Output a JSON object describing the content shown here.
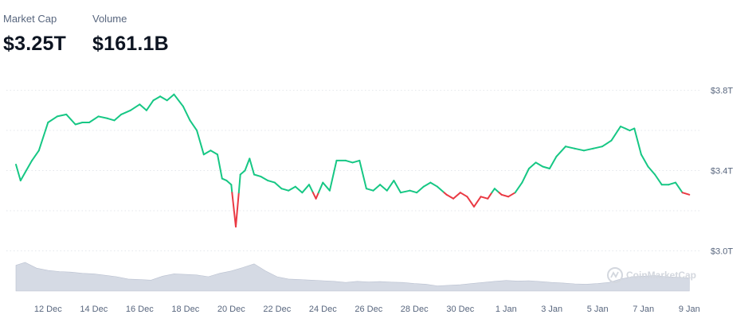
{
  "header": {
    "market_cap_label": "Market Cap",
    "market_cap_value": "$3.25T",
    "volume_label": "Volume",
    "volume_value": "$161.1B"
  },
  "watermark": "CoinMarketCap",
  "colors": {
    "up": "#16c784",
    "down": "#ea3943",
    "volume": "#c7cddb",
    "grid": "#e3e6eb",
    "text": "#58667e"
  },
  "chart_data": {
    "type": "line",
    "title": "",
    "xlabel": "",
    "ylabel": "",
    "baseline": 3.29,
    "ylim": [
      2.95,
      3.85
    ],
    "y_ticks": [
      {
        "v": 3.0,
        "label": "$3.0T"
      },
      {
        "v": 3.4,
        "label": "$3.4T"
      },
      {
        "v": 3.8,
        "label": "$3.8T"
      }
    ],
    "x_ticks": [
      "12 Dec",
      "14 Dec",
      "16 Dec",
      "18 Dec",
      "20 Dec",
      "22 Dec",
      "24 Dec",
      "26 Dec",
      "28 Dec",
      "30 Dec",
      "1 Jan",
      "3 Jan",
      "5 Jan",
      "7 Jan",
      "9 Jan"
    ],
    "x_range": [
      10.6,
      40.2
    ],
    "grid": true,
    "series": [
      {
        "unit": "trillion USD",
        "x": [
          10.6,
          10.8,
          11.0,
          11.3,
          11.6,
          12.0,
          12.4,
          12.8,
          13.2,
          13.5,
          13.8,
          14.2,
          14.6,
          14.9,
          15.2,
          15.6,
          16.0,
          16.3,
          16.6,
          16.9,
          17.2,
          17.5,
          17.9,
          18.2,
          18.5,
          18.8,
          19.1,
          19.4,
          19.6,
          19.8,
          20.0,
          20.2,
          20.4,
          20.6,
          20.8,
          21.0,
          21.3,
          21.6,
          21.9,
          22.2,
          22.5,
          22.8,
          23.1,
          23.4,
          23.7,
          24.0,
          24.3,
          24.6,
          25.0,
          25.3,
          25.6,
          25.9,
          26.2,
          26.5,
          26.8,
          27.1,
          27.4,
          27.8,
          28.1,
          28.4,
          28.7,
          29.0,
          29.4,
          29.7,
          30.0,
          30.3,
          30.6,
          30.9,
          31.2,
          31.5,
          31.8,
          32.1,
          32.4,
          32.7,
          33.0,
          33.3,
          33.6,
          33.9,
          34.2,
          34.6,
          35.0,
          35.4,
          35.8,
          36.2,
          36.6,
          37.0,
          37.2,
          37.4,
          37.6,
          37.9,
          38.2,
          38.5,
          38.8,
          39.1,
          39.4,
          39.7,
          40.0
        ],
        "y": [
          3.43,
          3.35,
          3.39,
          3.45,
          3.5,
          3.64,
          3.67,
          3.68,
          3.63,
          3.64,
          3.64,
          3.67,
          3.66,
          3.65,
          3.68,
          3.7,
          3.73,
          3.7,
          3.75,
          3.77,
          3.75,
          3.78,
          3.72,
          3.65,
          3.6,
          3.48,
          3.5,
          3.48,
          3.36,
          3.35,
          3.33,
          3.12,
          3.38,
          3.4,
          3.46,
          3.38,
          3.37,
          3.35,
          3.34,
          3.31,
          3.3,
          3.32,
          3.29,
          3.33,
          3.26,
          3.34,
          3.3,
          3.45,
          3.45,
          3.44,
          3.45,
          3.31,
          3.3,
          3.33,
          3.3,
          3.35,
          3.29,
          3.3,
          3.29,
          3.32,
          3.34,
          3.32,
          3.28,
          3.26,
          3.29,
          3.27,
          3.22,
          3.27,
          3.26,
          3.31,
          3.28,
          3.27,
          3.29,
          3.34,
          3.41,
          3.44,
          3.42,
          3.41,
          3.47,
          3.52,
          3.51,
          3.5,
          3.51,
          3.52,
          3.55,
          3.62,
          3.61,
          3.6,
          3.61,
          3.48,
          3.42,
          3.38,
          3.33,
          3.33,
          3.34,
          3.29,
          3.28
        ]
      },
      {
        "name": "Volume",
        "type": "area",
        "x": [
          10.6,
          11.0,
          11.5,
          12.0,
          12.5,
          13.0,
          13.5,
          14.0,
          14.5,
          15.0,
          15.5,
          16.0,
          16.5,
          17.0,
          17.5,
          18.0,
          18.5,
          19.0,
          19.5,
          20.0,
          20.5,
          21.0,
          21.5,
          22.0,
          22.5,
          23.0,
          23.5,
          24.0,
          24.5,
          25.0,
          25.5,
          26.0,
          26.5,
          27.0,
          27.5,
          28.0,
          28.5,
          29.0,
          29.5,
          30.0,
          30.5,
          31.0,
          31.5,
          32.0,
          32.5,
          33.0,
          33.5,
          34.0,
          34.5,
          35.0,
          35.5,
          36.0,
          36.5,
          37.0,
          37.5,
          38.0,
          38.5,
          39.0,
          39.5,
          40.0
        ],
        "values": [
          0.9,
          1.0,
          0.8,
          0.72,
          0.68,
          0.66,
          0.62,
          0.6,
          0.55,
          0.5,
          0.42,
          0.4,
          0.38,
          0.52,
          0.6,
          0.58,
          0.56,
          0.5,
          0.62,
          0.7,
          0.82,
          0.95,
          0.7,
          0.5,
          0.42,
          0.4,
          0.38,
          0.36,
          0.34,
          0.3,
          0.34,
          0.32,
          0.33,
          0.31,
          0.3,
          0.26,
          0.24,
          0.18,
          0.2,
          0.22,
          0.26,
          0.3,
          0.34,
          0.37,
          0.35,
          0.36,
          0.33,
          0.3,
          0.28,
          0.25,
          0.24,
          0.26,
          0.3,
          0.42,
          0.5,
          0.52,
          0.54,
          0.5,
          0.48,
          0.44
        ]
      }
    ]
  }
}
